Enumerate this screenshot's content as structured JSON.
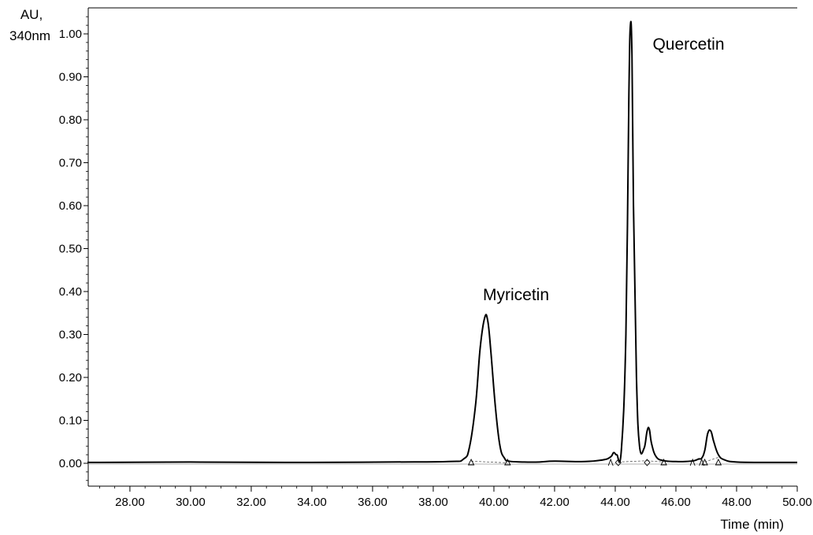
{
  "chart_data": {
    "type": "line",
    "title": "",
    "ylabel_line1": "AU,",
    "ylabel_line2": "340nm",
    "xlabel": "Time (min)",
    "xlim": [
      26.6,
      50.0
    ],
    "ylim": [
      -0.05,
      1.06
    ],
    "x_ticks": [
      "28.00",
      "30.00",
      "32.00",
      "34.00",
      "36.00",
      "38.00",
      "40.00",
      "42.00",
      "44.00",
      "46.00",
      "48.00",
      "50.00"
    ],
    "y_ticks": [
      "0.00",
      "0.10",
      "0.20",
      "0.30",
      "0.40",
      "0.50",
      "0.60",
      "0.70",
      "0.80",
      "0.90",
      "1.00"
    ],
    "grid": false,
    "series": [
      {
        "x": [
          26.6,
          30.0,
          34.0,
          36.5,
          38.5,
          39.0,
          39.2,
          39.4,
          39.55,
          39.7,
          39.8,
          39.9,
          40.05,
          40.2,
          40.35,
          40.5,
          41.0,
          41.5,
          42.0,
          43.0,
          43.6,
          43.85,
          43.95,
          44.05,
          44.2,
          44.35,
          44.45,
          44.5,
          44.55,
          44.6,
          44.7,
          44.8,
          44.95,
          45.05,
          45.12,
          45.2,
          45.35,
          45.6,
          46.0,
          46.3,
          46.6,
          46.75,
          46.85,
          46.95,
          47.05,
          47.15,
          47.25,
          47.4,
          47.6,
          48.0,
          49.0,
          50.0
        ],
        "y": [
          0.002,
          0.003,
          0.002,
          0.003,
          0.004,
          0.01,
          0.04,
          0.14,
          0.27,
          0.34,
          0.33,
          0.26,
          0.13,
          0.04,
          0.012,
          0.005,
          0.003,
          0.003,
          0.005,
          0.004,
          0.008,
          0.015,
          0.025,
          0.02,
          0.03,
          0.3,
          0.86,
          1.02,
          0.95,
          0.6,
          0.2,
          0.04,
          0.035,
          0.075,
          0.08,
          0.045,
          0.015,
          0.006,
          0.004,
          0.004,
          0.006,
          0.01,
          0.012,
          0.03,
          0.07,
          0.075,
          0.05,
          0.02,
          0.008,
          0.003,
          0.002,
          0.002
        ]
      }
    ],
    "annotations": [
      {
        "text": "Myricetin",
        "x": 40.2,
        "y": 0.385
      },
      {
        "text": "Quercetin",
        "x": 46.0,
        "y": 0.97
      }
    ],
    "integration_markers": [
      {
        "shape": "triangle",
        "x": 39.25
      },
      {
        "shape": "triangle",
        "x": 40.45
      },
      {
        "shape": "wedge",
        "x": 43.85
      },
      {
        "shape": "diamond",
        "x": 44.1
      },
      {
        "shape": "diamond",
        "x": 45.05
      },
      {
        "shape": "triangle",
        "x": 45.6
      },
      {
        "shape": "wedge",
        "x": 46.55
      },
      {
        "shape": "wedge",
        "x": 46.85
      },
      {
        "shape": "triangle",
        "x": 46.95
      },
      {
        "shape": "triangle",
        "x": 47.4
      }
    ],
    "baselines": [
      {
        "x": [
          39.25,
          40.45
        ],
        "y": [
          0.005,
          0.001
        ]
      },
      {
        "x": [
          44.1,
          45.05
        ],
        "y": [
          0.003,
          0.006
        ]
      },
      {
        "x": [
          45.05,
          45.6
        ],
        "y": [
          0.006,
          0.003
        ]
      },
      {
        "x": [
          46.95,
          47.4
        ],
        "y": [
          0.003,
          0.014
        ]
      }
    ]
  }
}
